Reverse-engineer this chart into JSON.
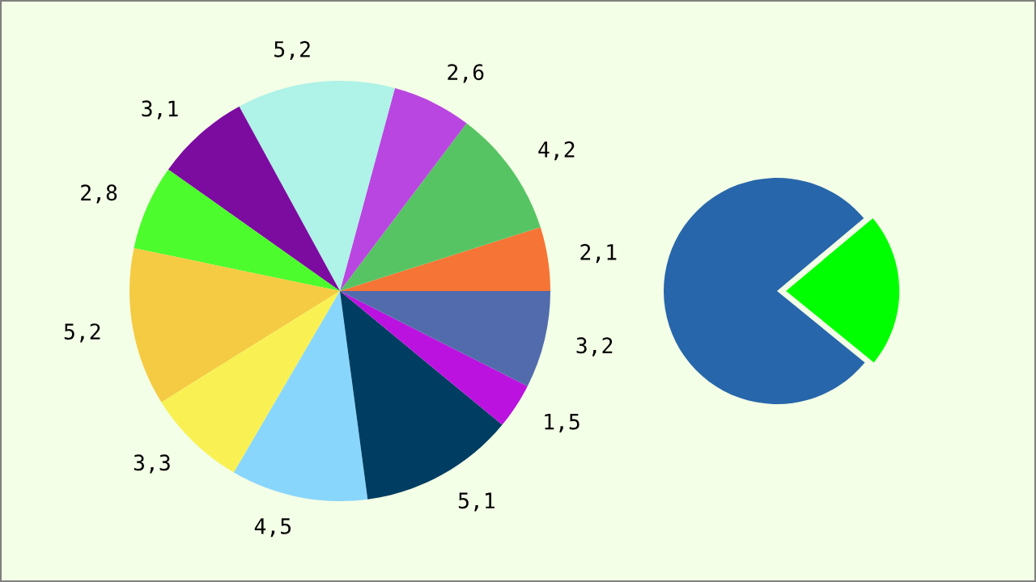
{
  "chart_data": [
    {
      "type": "pie",
      "categories": [
        null,
        null,
        null,
        null,
        null,
        null,
        null,
        null,
        null,
        null,
        null,
        null
      ],
      "values": [
        2.1,
        4.2,
        2.6,
        5.2,
        3.1,
        2.8,
        5.2,
        3.3,
        4.5,
        5.1,
        1.5,
        3.2
      ],
      "value_labels": [
        "2,1",
        "4,2",
        "2,6",
        "5,2",
        "3,1",
        "2,8",
        "5,2",
        "3,3",
        "4,5",
        "5,1",
        "1,5",
        "3,2"
      ],
      "colors": [
        "#f67536",
        "#57c463",
        "#b946e0",
        "#aef2e8",
        "#7c0ba0",
        "#4cfc2c",
        "#f4cb42",
        "#f9f153",
        "#89d6fd",
        "#003d62",
        "#bb12e0",
        "#526bac"
      ]
    },
    {
      "type": "pie",
      "categories": [
        null,
        null
      ],
      "values": [
        78,
        22
      ],
      "colors": [
        "#2866ab",
        "#00ff00"
      ]
    }
  ]
}
